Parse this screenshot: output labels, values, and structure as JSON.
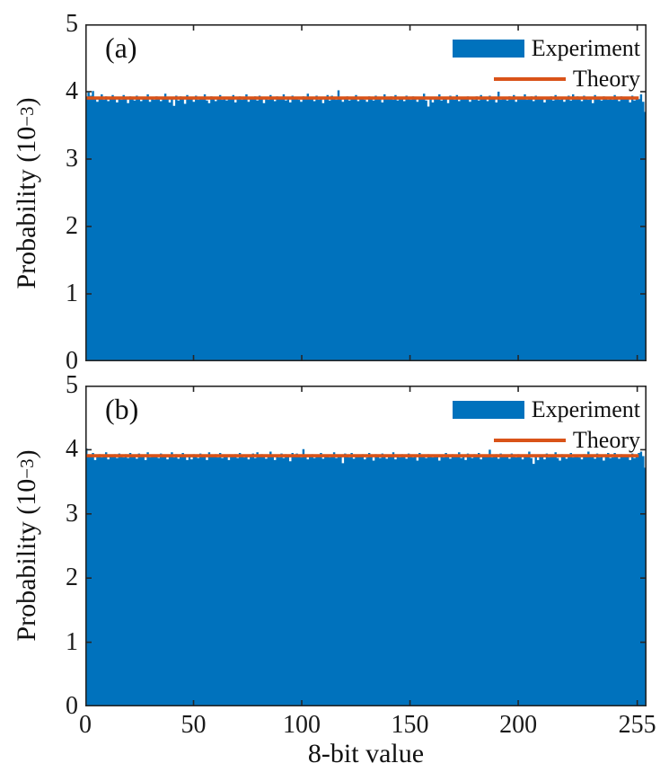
{
  "figure": {
    "background": "#ffffff",
    "axis_color": "#262626",
    "xlabel": "8-bit value",
    "ylabel_prefix": "Probability (10",
    "ylabel_sup": "−3",
    "ylabel_suffix": ")"
  },
  "chart_data": [
    {
      "type": "bar",
      "panel_label": "(a)",
      "xlabel": "8-bit value",
      "ylabel": "Probability (10^-3)",
      "ylim": [
        0,
        5
      ],
      "xlim": [
        0,
        259.3
      ],
      "x_ticks": [
        0,
        50,
        100,
        150,
        200,
        255
      ],
      "x_tick_labels": [
        "0",
        "50",
        "100",
        "150",
        "200",
        "255"
      ],
      "y_ticks": [
        0,
        1,
        2,
        3,
        4,
        5
      ],
      "y_tick_labels": [
        "0",
        "1",
        "2",
        "3",
        "4",
        "5"
      ],
      "grid": false,
      "legend_position": "top-right",
      "n_bins": 256,
      "bin_range": [
        0,
        255
      ],
      "series": [
        {
          "name": "Experiment",
          "type": "bar",
          "color": "#0072BD",
          "values": [
            3.92,
            3.99,
            3.94,
            4.01,
            3.92,
            3.85,
            3.9,
            3.96,
            3.88,
            3.93,
            3.86,
            3.91,
            3.95,
            3.89,
            3.84,
            3.92,
            3.88,
            3.95,
            3.9,
            3.83,
            3.93,
            3.91,
            3.87,
            3.94,
            3.9,
            3.86,
            3.92,
            3.89,
            3.96,
            3.85,
            3.91,
            3.88,
            3.93,
            3.89,
            3.86,
            3.92,
            3.97,
            3.9,
            3.84,
            3.91,
            3.79,
            3.94,
            3.87,
            3.93,
            3.9,
            3.82,
            3.95,
            3.89,
            3.91,
            3.85,
            3.94,
            3.88,
            3.92,
            3.9,
            3.96,
            3.87,
            3.83,
            3.93,
            3.9,
            3.86,
            3.92,
            3.95,
            3.88,
            3.91,
            3.87,
            3.92,
            3.89,
            3.95,
            3.84,
            3.91,
            3.93,
            3.88,
            3.9,
            3.96,
            3.85,
            3.92,
            3.89,
            3.93,
            3.87,
            3.94,
            3.9,
            3.83,
            3.92,
            3.88,
            3.95,
            3.91,
            3.86,
            3.93,
            3.89,
            3.92,
            3.96,
            3.87,
            3.91,
            3.84,
            3.94,
            3.9,
            3.92,
            3.88,
            3.85,
            3.93,
            3.9,
            3.97,
            3.89,
            3.91,
            3.86,
            3.94,
            3.88,
            3.92,
            3.83,
            3.9,
            3.95,
            3.87,
            3.94,
            3.91,
            3.88,
            4.02,
            3.92,
            3.85,
            3.9,
            3.93,
            3.87,
            3.91,
            3.89,
            3.95,
            3.86,
            3.92,
            3.9,
            3.88,
            3.85,
            3.93,
            3.91,
            3.87,
            3.94,
            3.9,
            3.92,
            3.84,
            3.96,
            3.89,
            3.91,
            3.93,
            3.88,
            3.95,
            3.87,
            3.9,
            3.92,
            3.86,
            3.94,
            3.9,
            3.88,
            3.93,
            3.91,
            3.85,
            3.92,
            3.89,
            3.97,
            3.87,
            3.78,
            3.9,
            3.84,
            3.91,
            3.89,
            3.96,
            3.87,
            3.92,
            3.9,
            3.83,
            3.94,
            3.91,
            3.88,
            3.95,
            3.86,
            3.9,
            3.92,
            3.89,
            3.93,
            3.85,
            3.91,
            3.88,
            3.93,
            3.87,
            3.95,
            3.9,
            3.92,
            3.86,
            3.94,
            3.89,
            3.91,
            3.84,
            4.0,
            3.88,
            3.92,
            3.9,
            3.87,
            3.93,
            3.9,
            3.95,
            3.85,
            3.91,
            3.89,
            3.92,
            3.96,
            3.88,
            3.9,
            3.93,
            3.86,
            3.94,
            3.89,
            3.91,
            3.9,
            3.84,
            3.92,
            3.89,
            3.93,
            3.87,
            3.95,
            3.9,
            3.88,
            3.92,
            3.85,
            3.91,
            3.94,
            3.87,
            3.96,
            3.89,
            3.93,
            3.9,
            3.86,
            3.94,
            3.91,
            3.88,
            3.92,
            3.83,
            3.95,
            3.89,
            3.91,
            3.87,
            3.93,
            3.9,
            3.88,
            3.92,
            3.88,
            3.95,
            3.91,
            3.86,
            3.93,
            3.89,
            3.92,
            3.9,
            3.84,
            3.94,
            3.87,
            3.91,
            3.89,
            3.96,
            3.85,
            3.7
          ]
        },
        {
          "name": "Theory",
          "type": "line",
          "color": "#D95319",
          "value": 3.906
        }
      ]
    },
    {
      "type": "bar",
      "panel_label": "(b)",
      "xlabel": "8-bit value",
      "ylabel": "Probability (10^-3)",
      "ylim": [
        0,
        5
      ],
      "xlim": [
        0,
        259.3
      ],
      "x_ticks": [
        0,
        50,
        100,
        150,
        200,
        255
      ],
      "x_tick_labels": [
        "0",
        "50",
        "100",
        "150",
        "200",
        "255"
      ],
      "y_ticks": [
        0,
        1,
        2,
        3,
        4,
        5
      ],
      "y_tick_labels": [
        "0",
        "1",
        "2",
        "3",
        "4",
        "5"
      ],
      "grid": false,
      "legend_position": "top-right",
      "n_bins": 256,
      "bin_range": [
        0,
        255
      ],
      "series": [
        {
          "name": "Experiment",
          "type": "bar",
          "color": "#0072BD",
          "values": [
            4.02,
            3.92,
            3.89,
            3.95,
            3.84,
            3.91,
            3.93,
            3.88,
            3.9,
            3.96,
            3.85,
            3.92,
            3.89,
            3.93,
            3.87,
            3.94,
            3.91,
            3.88,
            3.93,
            3.87,
            3.95,
            3.9,
            3.92,
            3.86,
            3.94,
            3.89,
            3.91,
            3.84,
            3.96,
            3.88,
            3.92,
            3.9,
            3.92,
            3.87,
            3.94,
            3.89,
            3.92,
            3.85,
            3.9,
            3.96,
            3.88,
            3.93,
            3.86,
            3.91,
            3.95,
            3.89,
            3.84,
            3.92,
            3.85,
            3.93,
            3.91,
            3.87,
            3.94,
            3.9,
            3.92,
            3.84,
            3.96,
            3.89,
            3.91,
            3.93,
            3.88,
            3.95,
            3.87,
            3.9,
            3.9,
            3.84,
            3.92,
            3.89,
            3.93,
            3.87,
            3.95,
            3.9,
            3.88,
            3.92,
            3.85,
            3.91,
            3.94,
            3.87,
            3.96,
            3.89,
            3.93,
            3.89,
            3.86,
            3.92,
            3.97,
            3.9,
            3.84,
            3.91,
            3.88,
            3.94,
            3.87,
            3.93,
            3.9,
            3.82,
            3.95,
            3.89,
            3.94,
            3.91,
            3.88,
            4.01,
            3.92,
            3.85,
            3.9,
            3.93,
            3.87,
            3.91,
            3.89,
            3.95,
            3.86,
            3.92,
            3.9,
            3.88,
            3.89,
            3.96,
            3.87,
            3.92,
            3.9,
            3.79,
            3.94,
            3.91,
            3.88,
            3.95,
            3.86,
            3.9,
            3.92,
            3.89,
            3.93,
            3.85,
            3.88,
            3.95,
            3.9,
            3.83,
            3.93,
            3.91,
            3.87,
            3.94,
            3.9,
            3.86,
            3.92,
            3.89,
            3.96,
            3.85,
            3.91,
            3.88,
            3.93,
            3.9,
            3.86,
            3.94,
            3.91,
            3.88,
            3.92,
            3.83,
            3.95,
            3.89,
            3.91,
            3.87,
            3.93,
            3.9,
            3.88,
            3.92,
            3.9,
            3.83,
            3.92,
            3.88,
            3.95,
            3.91,
            3.86,
            3.93,
            3.89,
            3.92,
            3.96,
            3.87,
            3.91,
            3.84,
            3.94,
            3.9,
            3.87,
            3.93,
            3.9,
            3.95,
            3.85,
            3.91,
            3.89,
            3.92,
            4.0,
            3.88,
            3.9,
            3.93,
            3.86,
            3.94,
            3.89,
            3.91,
            3.92,
            3.86,
            3.94,
            3.9,
            3.88,
            3.93,
            3.91,
            3.85,
            3.92,
            3.89,
            3.97,
            3.87,
            3.78,
            3.9,
            3.84,
            3.91,
            3.91,
            3.85,
            3.94,
            3.88,
            3.92,
            3.9,
            3.96,
            3.87,
            3.83,
            3.93,
            3.9,
            3.86,
            3.92,
            3.95,
            3.88,
            3.91,
            3.92,
            3.88,
            3.85,
            3.93,
            3.9,
            3.97,
            3.89,
            3.91,
            3.86,
            3.94,
            3.88,
            3.92,
            3.83,
            3.9,
            3.95,
            3.87,
            3.88,
            3.95,
            3.91,
            3.86,
            3.93,
            3.89,
            3.92,
            3.9,
            3.84,
            3.94,
            3.87,
            3.91,
            3.95,
            3.97,
            3.9,
            3.72
          ]
        },
        {
          "name": "Theory",
          "type": "line",
          "color": "#D95319",
          "value": 3.906
        }
      ]
    }
  ]
}
